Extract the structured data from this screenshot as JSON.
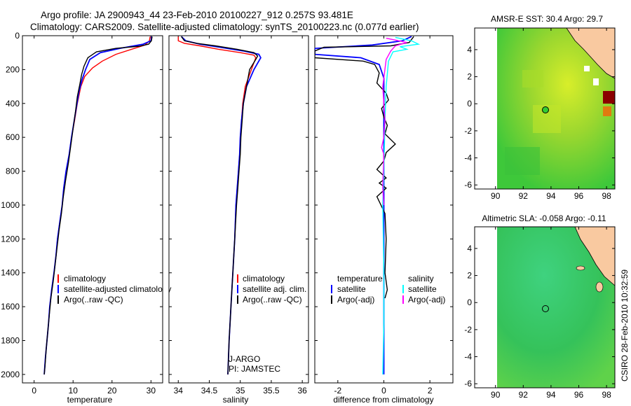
{
  "title": {
    "line1": "Argo profile: JA 2900943_44 23-Feb-2010 20100227_912 0.257S 93.481E",
    "line2": "Climatology: CARS2009. Satellite-adjusted climatology: synTS_20100223.nc (0.077d earlier)"
  },
  "credit": "CSIRO 28-Feb-2010 10:32:59",
  "colors": {
    "climatology": "#ff0000",
    "satellite": "#0000ff",
    "argo": "#000000",
    "salinity_sat": "#00ffff",
    "salinity_argo": "#ff00ff",
    "ocean_green": "#3ec43e",
    "land": "#f9c9a0",
    "float_marker": "#33cc33"
  },
  "chart_data": [
    {
      "type": "line",
      "title": "",
      "xlabel": "temperature",
      "ylabel": "",
      "xlim": [
        -3,
        33
      ],
      "ylim": [
        2050,
        0
      ],
      "y_reversed": true,
      "xticks": [
        0,
        10,
        20,
        30
      ],
      "yticks": [
        0,
        200,
        400,
        600,
        800,
        1000,
        1200,
        1400,
        1600,
        1800,
        2000
      ],
      "legend": {
        "placement": "lower-left",
        "entries": [
          "climatology",
          "satellite-adjusted climatology",
          "Argo(..raw -QC)"
        ]
      },
      "series": [
        {
          "name": "climatology",
          "color": "#ff0000",
          "points": [
            [
              29.8,
              5
            ],
            [
              29.6,
              30
            ],
            [
              28.5,
              55
            ],
            [
              25,
              80
            ],
            [
              21,
              110
            ],
            [
              17.5,
              150
            ],
            [
              15,
              190
            ],
            [
              13,
              240
            ],
            [
              12,
              300
            ],
            [
              11.1,
              400
            ],
            [
              10.4,
              500
            ],
            [
              9.6,
              600
            ],
            [
              9,
              700
            ],
            [
              8.2,
              800
            ],
            [
              7.6,
              900
            ],
            [
              7.2,
              1000
            ],
            [
              6.6,
              1100
            ],
            [
              6,
              1200
            ],
            [
              5.6,
              1300
            ],
            [
              5.1,
              1400
            ],
            [
              4.5,
              1500
            ],
            [
              4,
              1600
            ],
            [
              3.7,
              1700
            ],
            [
              3.3,
              1800
            ],
            [
              2.9,
              1900
            ],
            [
              2.6,
              2000
            ]
          ]
        },
        {
          "name": "satellite-adjusted climatology",
          "color": "#0000ff",
          "points": [
            [
              30.2,
              5
            ],
            [
              30,
              30
            ],
            [
              28,
              50
            ],
            [
              22,
              75
            ],
            [
              17,
              100
            ],
            [
              14.3,
              140
            ],
            [
              13.2,
              200
            ],
            [
              12.3,
              260
            ],
            [
              11.5,
              330
            ],
            [
              11,
              400
            ],
            [
              10.3,
              500
            ],
            [
              9.6,
              600
            ],
            [
              9,
              700
            ],
            [
              8.2,
              800
            ],
            [
              7.6,
              900
            ],
            [
              7.2,
              1000
            ],
            [
              6.6,
              1100
            ],
            [
              6,
              1200
            ],
            [
              5.6,
              1300
            ],
            [
              5.1,
              1400
            ],
            [
              4.5,
              1500
            ],
            [
              4,
              1600
            ],
            [
              3.7,
              1700
            ],
            [
              3.3,
              1800
            ],
            [
              2.9,
              1900
            ],
            [
              2.6,
              2000
            ]
          ]
        },
        {
          "name": "Argo(..raw -QC)",
          "color": "#000000",
          "points": [
            [
              30.3,
              5
            ],
            [
              30.1,
              30
            ],
            [
              29.4,
              50
            ],
            [
              27,
              62
            ],
            [
              21,
              75
            ],
            [
              16,
              95
            ],
            [
              13.8,
              130
            ],
            [
              12.8,
              180
            ],
            [
              12.2,
              230
            ],
            [
              11.7,
              290
            ],
            [
              11.1,
              360
            ],
            [
              10.6,
              450
            ],
            [
              10,
              550
            ],
            [
              9.4,
              650
            ],
            [
              8.8,
              750
            ],
            [
              8.1,
              850
            ],
            [
              7.5,
              950
            ],
            [
              7,
              1050
            ],
            [
              6.4,
              1150
            ],
            [
              5.9,
              1250
            ],
            [
              5.4,
              1350
            ],
            [
              4.9,
              1450
            ],
            [
              4.3,
              1550
            ],
            [
              3.9,
              1650
            ],
            [
              3.5,
              1750
            ],
            [
              3.1,
              1850
            ],
            [
              2.8,
              1950
            ],
            [
              2.6,
              2000
            ]
          ]
        }
      ]
    },
    {
      "type": "line",
      "xlabel": "salinity",
      "xlim": [
        33.85,
        36.1
      ],
      "ylim": [
        2050,
        0
      ],
      "xticks": [
        34,
        34.5,
        35,
        35.5,
        36
      ],
      "annotations": [
        "J-ARGO",
        "PI: JAMSTEC"
      ],
      "legend": {
        "placement": "lower-right",
        "entries": [
          "climatology",
          "satellite adj. clim.",
          "Argo(..raw -QC)"
        ]
      },
      "series": [
        {
          "name": "climatology",
          "color": "#ff0000",
          "points": [
            [
              34.0,
              5
            ],
            [
              34.0,
              30
            ],
            [
              34.1,
              45
            ],
            [
              34.35,
              60
            ],
            [
              34.65,
              80
            ],
            [
              35.0,
              100
            ],
            [
              35.22,
              115
            ],
            [
              35.25,
              130
            ],
            [
              35.18,
              200
            ],
            [
              35.08,
              300
            ],
            [
              35.04,
              400
            ],
            [
              35.02,
              500
            ],
            [
              35.0,
              600
            ],
            [
              34.99,
              700
            ],
            [
              34.97,
              800
            ],
            [
              34.95,
              900
            ],
            [
              34.93,
              1000
            ],
            [
              34.91,
              1200
            ],
            [
              34.88,
              1400
            ],
            [
              34.85,
              1600
            ],
            [
              34.82,
              1800
            ],
            [
              34.8,
              2000
            ]
          ]
        },
        {
          "name": "satellite adj. clim.",
          "color": "#0000ff",
          "points": [
            [
              34.05,
              5
            ],
            [
              34.12,
              30
            ],
            [
              34.35,
              50
            ],
            [
              34.7,
              70
            ],
            [
              35.05,
              90
            ],
            [
              35.3,
              110
            ],
            [
              35.33,
              130
            ],
            [
              35.22,
              200
            ],
            [
              35.1,
              300
            ],
            [
              35.05,
              400
            ],
            [
              35.02,
              500
            ],
            [
              35.0,
              600
            ],
            [
              34.99,
              700
            ],
            [
              34.97,
              800
            ],
            [
              34.95,
              900
            ],
            [
              34.93,
              1000
            ],
            [
              34.91,
              1200
            ],
            [
              34.88,
              1400
            ],
            [
              34.85,
              1600
            ],
            [
              34.82,
              1800
            ],
            [
              34.8,
              2000
            ]
          ]
        },
        {
          "name": "Argo(..raw -QC)",
          "color": "#000000",
          "points": [
            [
              34.05,
              5
            ],
            [
              34.1,
              30
            ],
            [
              34.3,
              45
            ],
            [
              34.6,
              60
            ],
            [
              34.95,
              80
            ],
            [
              35.22,
              100
            ],
            [
              35.28,
              120
            ],
            [
              35.25,
              140
            ],
            [
              35.15,
              200
            ],
            [
              35.1,
              300
            ],
            [
              35.05,
              400
            ],
            [
              35.03,
              500
            ],
            [
              35.01,
              600
            ],
            [
              35.0,
              700
            ],
            [
              34.98,
              800
            ],
            [
              34.96,
              900
            ],
            [
              34.94,
              1000
            ],
            [
              34.91,
              1200
            ],
            [
              34.88,
              1400
            ],
            [
              34.85,
              1600
            ],
            [
              34.82,
              1800
            ],
            [
              34.8,
              2000
            ]
          ]
        }
      ]
    },
    {
      "type": "line",
      "xlabel": "difference from climatology",
      "xlim": [
        -3,
        3
      ],
      "ylim": [
        2050,
        0
      ],
      "xticks": [
        -2,
        0,
        2
      ],
      "legend": {
        "placement": "lower",
        "headers": [
          "temperature",
          "salinity"
        ],
        "entries": [
          "satellite",
          "Argo(-adj)",
          "satellite",
          "Argo(-adj)"
        ]
      },
      "series": [
        {
          "name": "temperature satellite",
          "color": "#0000ff",
          "points": [
            [
              1.2,
              5
            ],
            [
              0.8,
              30
            ],
            [
              -0.5,
              55
            ],
            [
              -3,
              75
            ],
            [
              -3,
              110
            ],
            [
              -1,
              130
            ],
            [
              -0.2,
              170
            ],
            [
              0,
              250
            ],
            [
              0,
              2000
            ]
          ]
        },
        {
          "name": "temperature Argo(-adj)",
          "color": "#000000",
          "points": [
            [
              1.3,
              5
            ],
            [
              1.1,
              40
            ],
            [
              0.3,
              60
            ],
            [
              -2.6,
              68
            ],
            [
              -3,
              90
            ],
            [
              -3,
              130
            ],
            [
              -0.9,
              150
            ],
            [
              -0.4,
              170
            ],
            [
              -0.2,
              220
            ],
            [
              -0.3,
              280
            ],
            [
              0.1,
              340
            ],
            [
              0.2,
              380
            ],
            [
              -0.1,
              430
            ],
            [
              0,
              480
            ],
            [
              0.15,
              530
            ],
            [
              0.05,
              580
            ],
            [
              0.5,
              640
            ],
            [
              0.1,
              690
            ],
            [
              0,
              740
            ],
            [
              -0.3,
              790
            ],
            [
              0.1,
              840
            ],
            [
              -0.2,
              870
            ],
            [
              0.1,
              900
            ],
            [
              -0.3,
              950
            ],
            [
              0.05,
              1050
            ],
            [
              0.1,
              1200
            ],
            [
              0.05,
              1400
            ],
            [
              0.15,
              1500
            ],
            [
              0.05,
              1550
            ]
          ]
        },
        {
          "name": "salinity satellite",
          "color": "#00ffff",
          "points": [
            [
              0.5,
              10
            ],
            [
              1.2,
              30
            ],
            [
              1.5,
              50
            ],
            [
              0.7,
              65
            ],
            [
              1.0,
              80
            ],
            [
              0.4,
              95
            ],
            [
              0.2,
              150
            ],
            [
              0.1,
              300
            ],
            [
              0.05,
              500
            ],
            [
              0,
              800
            ],
            [
              -0.05,
              1000
            ],
            [
              0,
              1400
            ],
            [
              0,
              1700
            ],
            [
              -0.05,
              2000
            ]
          ]
        },
        {
          "name": "salinity Argo(-adj)",
          "color": "#ff00ff",
          "points": [
            [
              0.1,
              15
            ],
            [
              1.0,
              40
            ],
            [
              0.5,
              60
            ],
            [
              0.3,
              90
            ],
            [
              0.1,
              140
            ],
            [
              -0.05,
              300
            ],
            [
              0.05,
              500
            ],
            [
              0.0,
              600
            ],
            [
              -0.1,
              660
            ],
            [
              0.0,
              700
            ],
            [
              -0.05,
              900
            ],
            [
              0,
              1000
            ]
          ]
        }
      ]
    },
    {
      "type": "heatmap",
      "title": "AMSR-E SST: 30.4 Argo: 29.7",
      "xlim": [
        88.5,
        98.6
      ],
      "ylim": [
        -6.3,
        5.6
      ],
      "xticks": [
        90,
        92,
        94,
        96,
        98
      ],
      "yticks": [
        -6,
        -4,
        -2,
        0,
        2,
        4
      ],
      "float_position": [
        93.481,
        -0.257
      ]
    },
    {
      "type": "heatmap",
      "title": "Altimetric SLA: -0.058 Argo: -0.11",
      "xlim": [
        88.5,
        98.6
      ],
      "ylim": [
        -6.3,
        5.6
      ],
      "xticks": [
        90,
        92,
        94,
        96,
        98
      ],
      "yticks": [
        -6,
        -4,
        -2,
        0,
        2,
        4
      ],
      "float_position": [
        93.481,
        -0.257
      ]
    }
  ]
}
